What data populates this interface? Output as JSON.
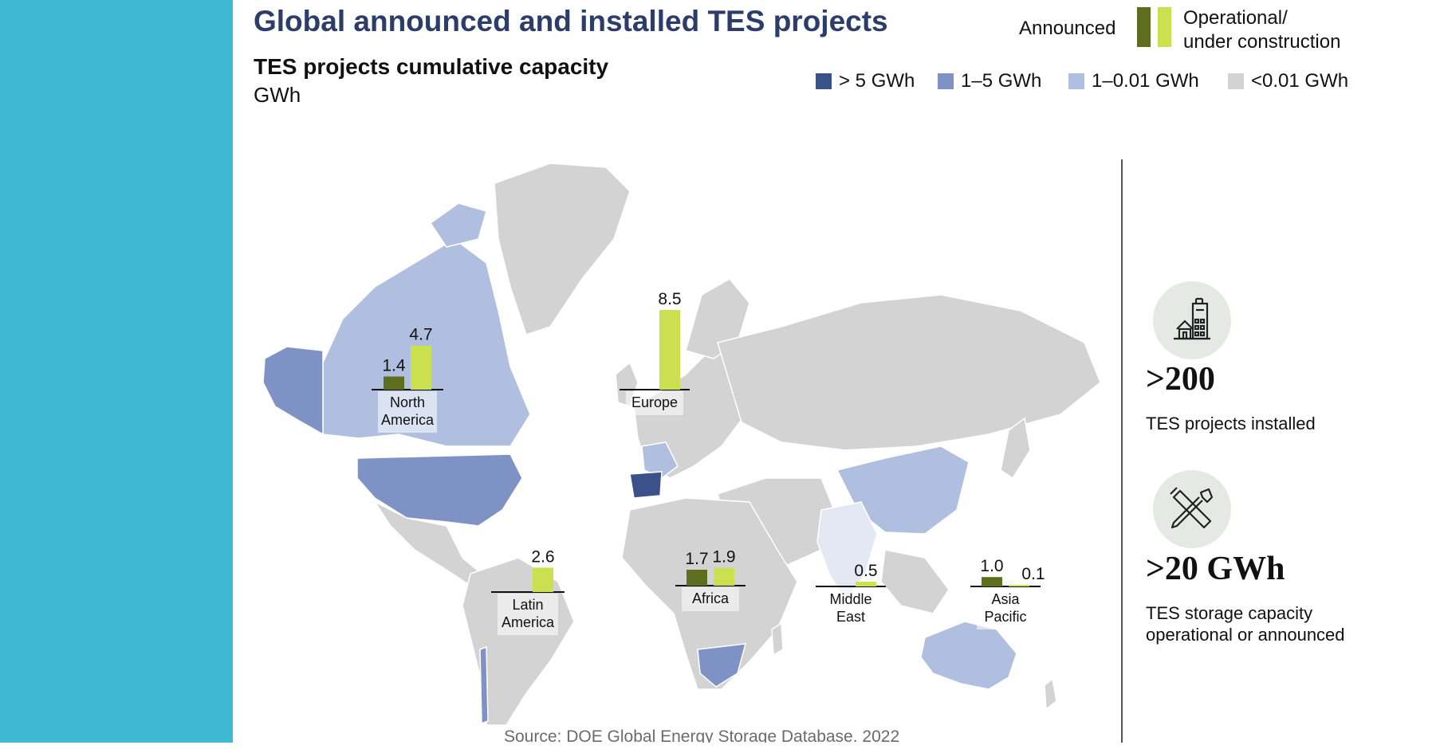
{
  "title": "Global announced and installed TES projects",
  "subtitle": "TES projects cumulative capacity",
  "unit": "GWh",
  "legend": {
    "series": [
      {
        "label": "Announced",
        "color": "#5d6e1f"
      },
      {
        "label_lines": [
          "Operational/",
          "under construction"
        ],
        "color": "#cbe04f"
      }
    ],
    "capacity_bins": [
      {
        "label": "> 5 GWh",
        "color": "#3a5189"
      },
      {
        "label": "1–5 GWh",
        "color": "#7f92c6"
      },
      {
        "label": "1–0.01 GWh",
        "color": "#b0bee0"
      },
      {
        "label": "<0.01 GWh",
        "color": "#d3d3d3"
      }
    ]
  },
  "chart_data": {
    "type": "bar",
    "series": [
      {
        "name": "Announced",
        "color": "#5d6e1f"
      },
      {
        "name": "Operational/ under construction",
        "color": "#cbe04f"
      }
    ],
    "regions": [
      {
        "name_lines": [
          "North",
          "America"
        ],
        "announced": 1.4,
        "operational": 4.7,
        "announced_label": "1.4",
        "operational_label": "4.7"
      },
      {
        "name_lines": [
          "Europe"
        ],
        "announced": null,
        "operational": 8.5,
        "announced_label": "",
        "operational_label": "8.5"
      },
      {
        "name_lines": [
          "Latin",
          "America"
        ],
        "announced": null,
        "operational": 2.6,
        "announced_label": "",
        "operational_label": "2.6"
      },
      {
        "name_lines": [
          "Africa"
        ],
        "announced": 1.7,
        "operational": 1.9,
        "announced_label": "1.7",
        "operational_label": "1.9"
      },
      {
        "name_lines": [
          "Middle",
          "East"
        ],
        "announced": null,
        "operational": 0.5,
        "announced_label": "",
        "operational_label": "0.5"
      },
      {
        "name_lines": [
          "Asia",
          "Pacific"
        ],
        "announced": 1.0,
        "operational": 0.1,
        "announced_label": "1.0",
        "operational_label": "0.1"
      }
    ]
  },
  "stats": [
    {
      "value": ">200",
      "caption_lines": [
        "TES projects installed"
      ],
      "icon": "buildings-icon"
    },
    {
      "value": ">20 GWh",
      "caption_lines": [
        "TES storage capacity",
        "operational or announced"
      ],
      "icon": "tools-icon"
    }
  ],
  "source": "Source: DOE Global Energy Storage Database. 2022"
}
